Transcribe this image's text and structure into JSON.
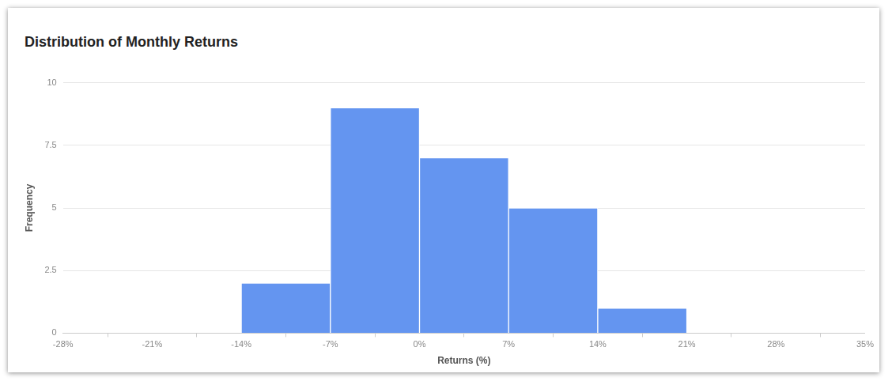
{
  "chart_data": {
    "type": "histogram",
    "title": "Distribution of Monthly Returns",
    "x_label": "Returns (%)",
    "y_label": "Frequency",
    "bins": [
      -14,
      -7,
      0,
      7,
      14,
      21
    ],
    "values": [
      2,
      9,
      7,
      5,
      1
    ],
    "color": "#6495f0",
    "xlim": [
      -28,
      35
    ],
    "xticks": [
      {
        "value": -28,
        "label": "-28%"
      },
      {
        "value": -21,
        "label": "-21%"
      },
      {
        "value": -14,
        "label": "-14%"
      },
      {
        "value": -7,
        "label": "-7%"
      },
      {
        "value": 0,
        "label": "0%"
      },
      {
        "value": 7,
        "label": "7%"
      },
      {
        "value": 14,
        "label": "14%"
      },
      {
        "value": 21,
        "label": "21%"
      },
      {
        "value": 28,
        "label": "28%"
      },
      {
        "value": 35,
        "label": "35%"
      }
    ],
    "ylim": [
      0,
      10
    ],
    "yticks": [
      0,
      2.5,
      5,
      7.5,
      10
    ],
    "grid": true
  }
}
